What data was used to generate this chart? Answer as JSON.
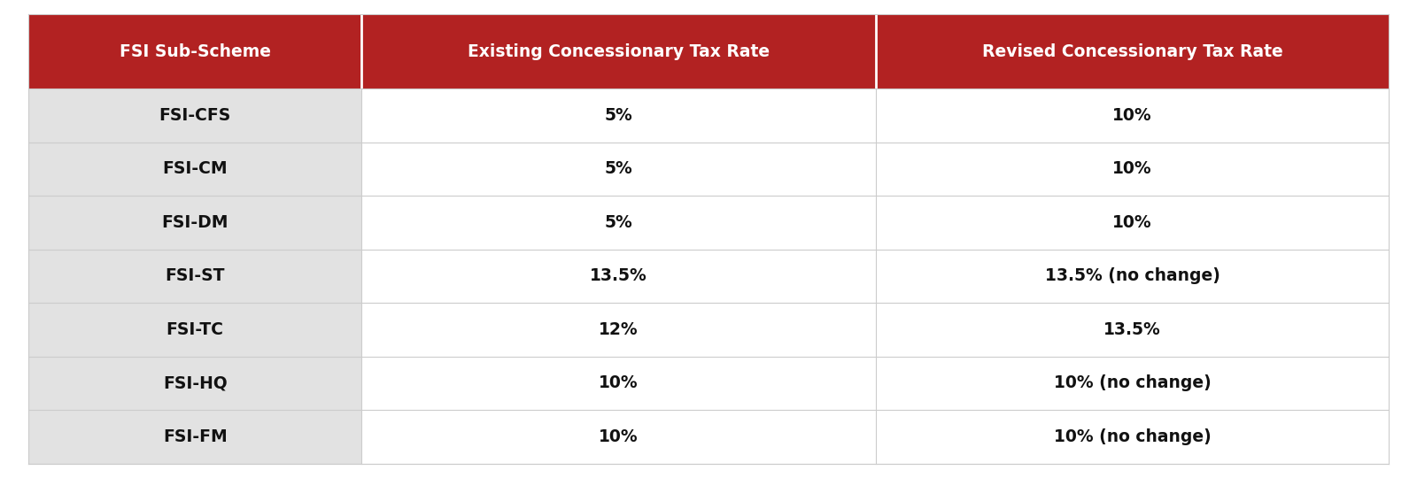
{
  "headers": [
    "FSI Sub-Scheme",
    "Existing Concessionary Tax Rate",
    "Revised Concessionary Tax Rate"
  ],
  "rows": [
    [
      "FSI-CFS",
      "5%",
      "10%"
    ],
    [
      "FSI-CM",
      "5%",
      "10%"
    ],
    [
      "FSI-DM",
      "5%",
      "10%"
    ],
    [
      "FSI-ST",
      "13.5%",
      "13.5% (no change)"
    ],
    [
      "FSI-TC",
      "12%",
      "13.5%"
    ],
    [
      "FSI-HQ",
      "10%",
      "10% (no change)"
    ],
    [
      "FSI-FM",
      "10%",
      "10% (no change)"
    ]
  ],
  "header_bg_color": "#B22222",
  "header_text_color": "#FFFFFF",
  "col1_bg_color": "#E2E2E2",
  "col23_bg_color": "#FFFFFF",
  "cell_text_color": "#111111",
  "header_fontsize": 13.5,
  "cell_fontsize": 13.5,
  "divider_color": "#CCCCCC",
  "header_divider_color": "#FFFFFF",
  "background_color": "#FFFFFF"
}
